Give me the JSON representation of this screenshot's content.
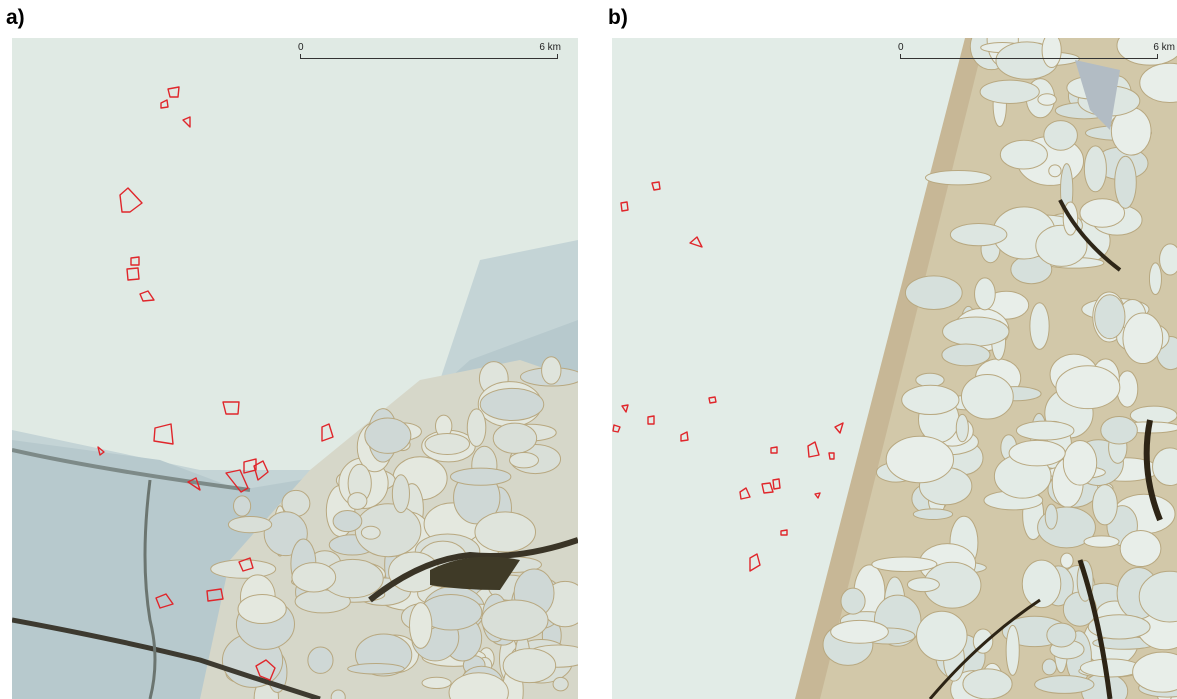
{
  "panels": [
    {
      "label": "a)",
      "scale": {
        "start": "0",
        "end": "6 km"
      }
    },
    {
      "label": "b)",
      "scale": {
        "start": "0",
        "end": "6 km"
      }
    }
  ]
}
